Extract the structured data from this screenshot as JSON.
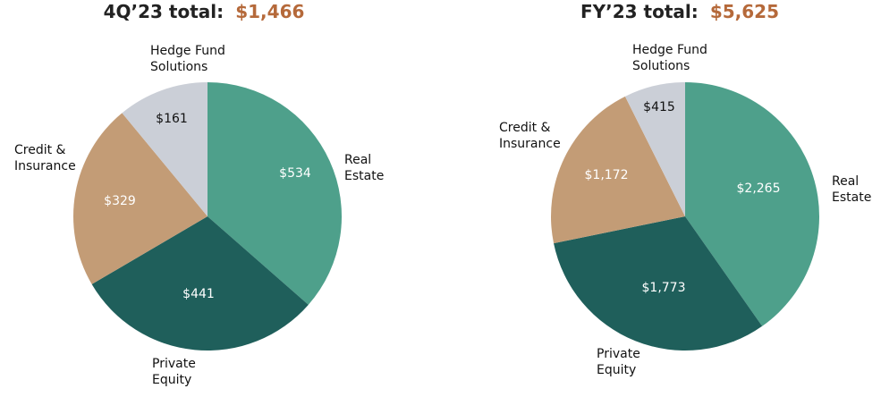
{
  "chart_data": [
    {
      "type": "pie",
      "title_label": "4Q’23 total:",
      "title_value": "$1,466",
      "slices": [
        {
          "category": "Real Estate",
          "label_lines": [
            "Real",
            "Estate"
          ],
          "value": 534,
          "value_label": "$534",
          "color": "#4ea08b",
          "label_color": "#ffffff"
        },
        {
          "category": "Private Equity",
          "label_lines": [
            "Private",
            "Equity"
          ],
          "value": 441,
          "value_label": "$441",
          "color": "#1f5f5b",
          "label_color": "#ffffff"
        },
        {
          "category": "Credit & Insurance",
          "label_lines": [
            "Credit &",
            "Insurance"
          ],
          "value": 329,
          "value_label": "$329",
          "color": "#c39c76",
          "label_color": "#ffffff"
        },
        {
          "category": "Hedge Fund Solutions",
          "label_lines": [
            "Hedge Fund",
            "Solutions"
          ],
          "value": 161,
          "value_label": "$161",
          "color": "#cbcfd7",
          "label_color": "#111111"
        }
      ]
    },
    {
      "type": "pie",
      "title_label": "FY’23 total:",
      "title_value": "$5,625",
      "slices": [
        {
          "category": "Real Estate",
          "label_lines": [
            "Real",
            "Estate"
          ],
          "value": 2265,
          "value_label": "$2,265",
          "color": "#4ea08b",
          "label_color": "#ffffff"
        },
        {
          "category": "Private Equity",
          "label_lines": [
            "Private",
            "Equity"
          ],
          "value": 1773,
          "value_label": "$1,773",
          "color": "#1f5f5b",
          "label_color": "#ffffff"
        },
        {
          "category": "Credit & Insurance",
          "label_lines": [
            "Credit &",
            "Insurance"
          ],
          "value": 1172,
          "value_label": "$1,172",
          "color": "#c39c76",
          "label_color": "#ffffff"
        },
        {
          "category": "Hedge Fund Solutions",
          "label_lines": [
            "Hedge Fund",
            "Solutions"
          ],
          "value": 415,
          "value_label": "$415",
          "color": "#cbcfd7",
          "label_color": "#111111"
        }
      ]
    }
  ],
  "colors": {
    "title_accent": "#b5693a",
    "title_text": "#222222"
  }
}
